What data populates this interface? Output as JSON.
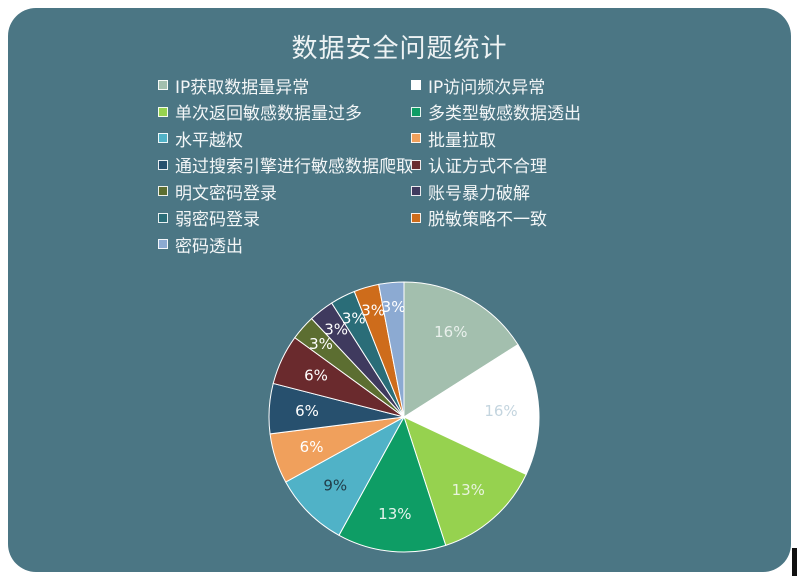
{
  "chart_data": {
    "type": "pie",
    "title": "数据安全问题统计",
    "categories": [
      "IP获取数据量异常",
      "IP访问频次异常",
      "单次返回敏感数据量过多",
      "多类型敏感数据透出",
      "水平越权",
      "批量拉取",
      "通过搜索引擎进行敏感数据爬取",
      "认证方式不合理",
      "明文密码登录",
      "账号暴力破解",
      "弱密码登录",
      "脱敏策略不一致",
      "密码透出"
    ],
    "values": [
      16,
      16,
      13,
      13,
      9,
      6,
      6,
      6,
      3,
      3,
      3,
      3,
      3
    ],
    "labels": [
      "16%",
      "16%",
      "13%",
      "13%",
      "9%",
      "6%",
      "6%",
      "6%",
      "3%",
      "3%",
      "3%",
      "3%",
      "3%"
    ],
    "colors": [
      "#a3bfae",
      "#ffffff",
      "#96d24f",
      "#0e9d65",
      "#50b2c7",
      "#f0a05c",
      "#27506e",
      "#6a2a2d",
      "#5c6e31",
      "#3f3a5e",
      "#2a6d78",
      "#ce6c1b",
      "#8caad2"
    ],
    "label_colors": [
      "#e9f0ec",
      "#c4d5df",
      "#e9f4de",
      "#e4f3ec",
      "#213d49",
      "#ffffff",
      "#ffffff",
      "#ffffff",
      "#ffffff",
      "#ffffff",
      "#ffffff",
      "#ffffff",
      "#ffffff"
    ],
    "legend_placement": "top",
    "legend_columns": 2
  }
}
